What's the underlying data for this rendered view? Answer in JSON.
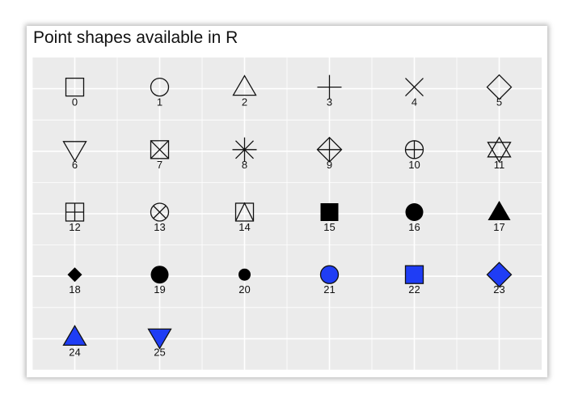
{
  "chart_data": {
    "type": "scatter",
    "title": "Point shapes available in R",
    "xlabel": "",
    "ylabel": "",
    "grid": true,
    "background": "#EBEBEB",
    "fill_color": "#1F3DF5",
    "columns": 6,
    "points": [
      {
        "shape": 0,
        "label": "0",
        "x": 0,
        "y": 4
      },
      {
        "shape": 1,
        "label": "1",
        "x": 1,
        "y": 4
      },
      {
        "shape": 2,
        "label": "2",
        "x": 2,
        "y": 4
      },
      {
        "shape": 3,
        "label": "3",
        "x": 3,
        "y": 4
      },
      {
        "shape": 4,
        "label": "4",
        "x": 4,
        "y": 4
      },
      {
        "shape": 5,
        "label": "5",
        "x": 5,
        "y": 4
      },
      {
        "shape": 6,
        "label": "6",
        "x": 0,
        "y": 3
      },
      {
        "shape": 7,
        "label": "7",
        "x": 1,
        "y": 3
      },
      {
        "shape": 8,
        "label": "8",
        "x": 2,
        "y": 3
      },
      {
        "shape": 9,
        "label": "9",
        "x": 3,
        "y": 3
      },
      {
        "shape": 10,
        "label": "10",
        "x": 4,
        "y": 3
      },
      {
        "shape": 11,
        "label": "11",
        "x": 5,
        "y": 3
      },
      {
        "shape": 12,
        "label": "12",
        "x": 0,
        "y": 2
      },
      {
        "shape": 13,
        "label": "13",
        "x": 1,
        "y": 2
      },
      {
        "shape": 14,
        "label": "14",
        "x": 2,
        "y": 2
      },
      {
        "shape": 15,
        "label": "15",
        "x": 3,
        "y": 2
      },
      {
        "shape": 16,
        "label": "16",
        "x": 4,
        "y": 2
      },
      {
        "shape": 17,
        "label": "17",
        "x": 5,
        "y": 2
      },
      {
        "shape": 18,
        "label": "18",
        "x": 0,
        "y": 1
      },
      {
        "shape": 19,
        "label": "19",
        "x": 1,
        "y": 1
      },
      {
        "shape": 20,
        "label": "20",
        "x": 2,
        "y": 1
      },
      {
        "shape": 21,
        "label": "21",
        "x": 3,
        "y": 1
      },
      {
        "shape": 22,
        "label": "22",
        "x": 4,
        "y": 1
      },
      {
        "shape": 23,
        "label": "23",
        "x": 5,
        "y": 1
      },
      {
        "shape": 24,
        "label": "24",
        "x": 0,
        "y": 0
      },
      {
        "shape": 25,
        "label": "25",
        "x": 1,
        "y": 0
      }
    ]
  }
}
